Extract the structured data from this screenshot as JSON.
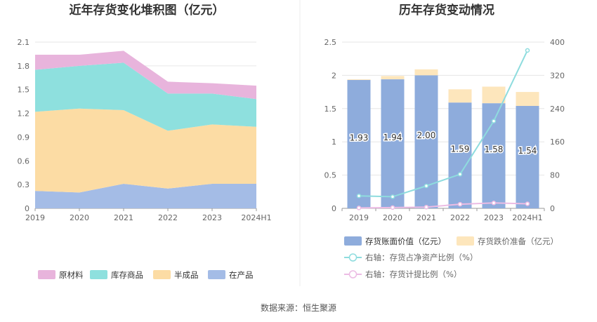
{
  "source_label": "数据来源：恒生聚源",
  "colors": {
    "raw": "#e8b4dc",
    "inventory": "#8ee0de",
    "semi": "#fcdca4",
    "wip": "#a4bce6",
    "bar_book": "#8eacdc",
    "bar_provision": "#fde6bc",
    "line_ratio": "#8edcde",
    "line_provision": "#ecbce4"
  },
  "chart_data": [
    {
      "type": "area",
      "title": "近年存货变化堆积图（亿元）",
      "categories": [
        "2019",
        "2020",
        "2021",
        "2022",
        "2023",
        "2024H1"
      ],
      "ylim": [
        0,
        2.1
      ],
      "yticks": [
        "0",
        "0.3",
        "0.6",
        "0.9",
        "1.2",
        "1.5",
        "1.8",
        "2.1"
      ],
      "stacked": true,
      "grid": true,
      "legend_position": "bottom",
      "series": [
        {
          "name": "在产品",
          "values": [
            0.22,
            0.2,
            0.31,
            0.25,
            0.31,
            0.31
          ]
        },
        {
          "name": "半成品",
          "values": [
            1.0,
            1.06,
            0.93,
            0.73,
            0.75,
            0.72
          ]
        },
        {
          "name": "库存商品",
          "values": [
            0.53,
            0.54,
            0.6,
            0.47,
            0.39,
            0.35
          ]
        },
        {
          "name": "原材料",
          "values": [
            0.19,
            0.14,
            0.15,
            0.15,
            0.13,
            0.17
          ]
        }
      ],
      "legend_order": [
        "原材料",
        "库存商品",
        "半成品",
        "在产品"
      ]
    },
    {
      "type": "bar",
      "title": "历年存货变动情况",
      "categories": [
        "2019",
        "2020",
        "2021",
        "2022",
        "2023",
        "2024H1"
      ],
      "ylim": [
        0,
        2.5
      ],
      "yticks": [
        "0",
        "0.5",
        "1",
        "1.5",
        "2",
        "2.5"
      ],
      "y2lim": [
        0,
        400
      ],
      "y2ticks": [
        "0",
        "80",
        "160",
        "240",
        "320",
        "400"
      ],
      "stacked": true,
      "grid": true,
      "legend_position": "bottom",
      "series": [
        {
          "name": "存货账面价值（亿元）",
          "values": [
            1.93,
            1.94,
            2.0,
            1.59,
            1.58,
            1.54
          ],
          "labels": [
            "1.93",
            "1.94",
            "2.00",
            "1.59",
            "1.58",
            "1.54"
          ]
        },
        {
          "name": "存货跌价准备（亿元）",
          "values": [
            0.01,
            0.05,
            0.09,
            0.2,
            0.25,
            0.21
          ]
        }
      ],
      "lines": [
        {
          "name": "右轴：存货占净资产比例（%）",
          "axis": "right",
          "values": [
            30,
            28,
            54,
            82,
            210,
            380
          ]
        },
        {
          "name": "右轴：存货计提比例（%）",
          "axis": "right",
          "values": [
            1,
            2,
            3,
            10,
            13,
            11
          ]
        }
      ]
    }
  ]
}
